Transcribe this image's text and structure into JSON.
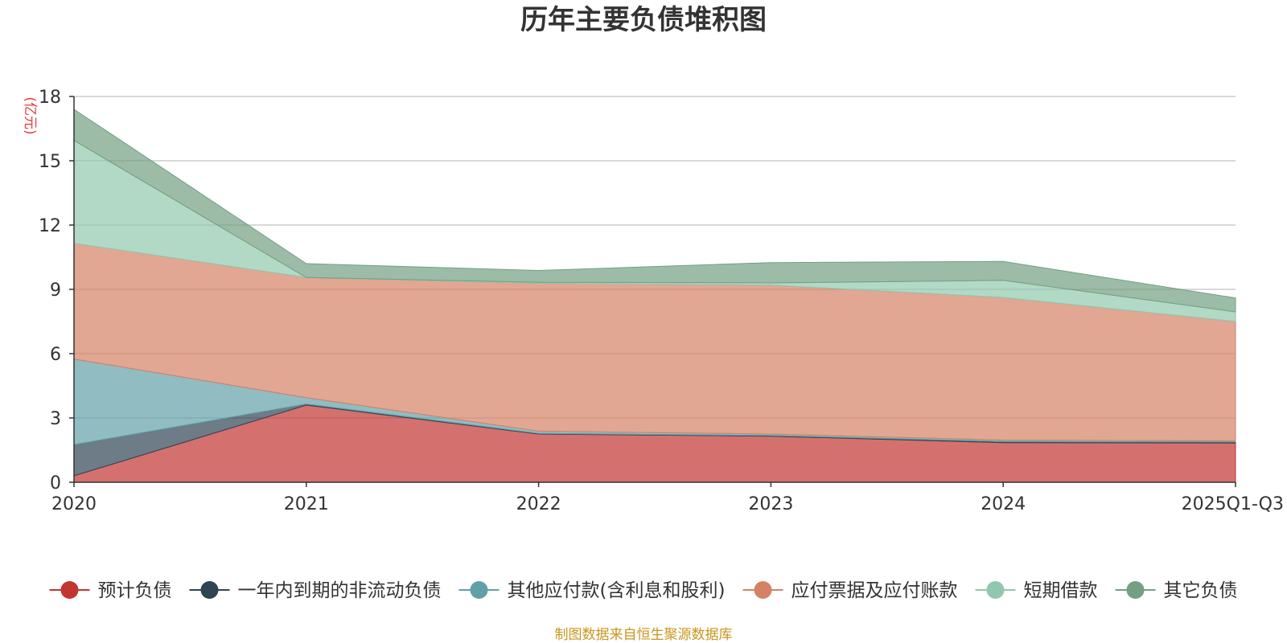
{
  "chart_data": {
    "type": "area",
    "stacked": true,
    "title": "历年主要负债堆积图",
    "ylabel": "(亿元)",
    "xlabel": "",
    "categories": [
      "2020",
      "2021",
      "2022",
      "2023",
      "2024",
      "2025Q1-Q3"
    ],
    "ylim": [
      0,
      18
    ],
    "yticks": [
      0,
      3,
      6,
      9,
      12,
      15,
      18
    ],
    "grid": true,
    "legend_position": "bottom",
    "series": [
      {
        "name": "预计负债",
        "color": "#c23531",
        "values": [
          0.3,
          3.6,
          2.25,
          2.15,
          1.85,
          1.83
        ]
      },
      {
        "name": "一年内到期的非流动负债",
        "color": "#2f4554",
        "values": [
          1.45,
          0.05,
          0.03,
          0.03,
          0.05,
          0.05
        ]
      },
      {
        "name": "其他应付款(含利息和股利)",
        "color": "#61a0a8",
        "values": [
          4.0,
          0.3,
          0.1,
          0.07,
          0.07,
          0.05
        ]
      },
      {
        "name": "应付票据及应付账款",
        "color": "#d48265",
        "values": [
          5.4,
          5.6,
          6.9,
          6.95,
          6.65,
          5.57
        ]
      },
      {
        "name": "短期借款",
        "color": "#91c7ae",
        "values": [
          4.8,
          0.0,
          0.05,
          0.1,
          0.8,
          0.45
        ]
      },
      {
        "name": "其它负债",
        "color": "#749f83",
        "values": [
          1.45,
          0.65,
          0.55,
          0.95,
          0.88,
          0.65
        ]
      }
    ],
    "source_note": "制图数据来自恒生聚源数据库"
  }
}
